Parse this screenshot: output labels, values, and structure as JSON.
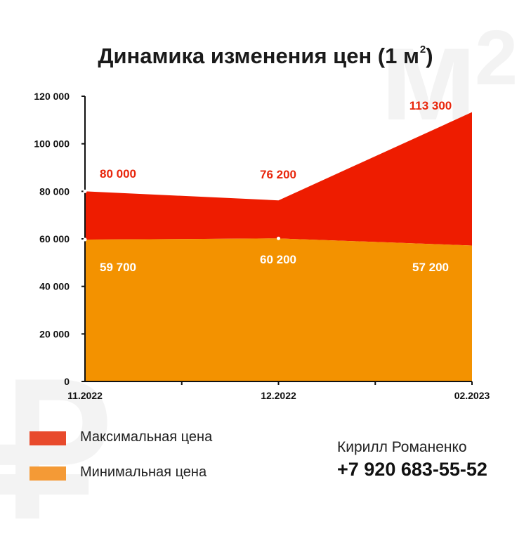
{
  "watermark": {
    "m": "м",
    "two": "2",
    "ruble": "₽"
  },
  "title": {
    "text": "Динамика изменения цен (1 м",
    "sup": "2",
    "close": ")"
  },
  "chart_data": {
    "type": "area",
    "title": "Динамика изменения цен (1 м²)",
    "categories": [
      "11.2022",
      "12.2022",
      "02.2023"
    ],
    "series": [
      {
        "name": "Максимальная цена",
        "values": [
          80000,
          76200,
          113300
        ],
        "color": "#ee1c00",
        "labels": [
          "80 000",
          "76 200",
          "113 300"
        ],
        "label_color": "#e8260c"
      },
      {
        "name": "Минимальная цена",
        "values": [
          59700,
          60200,
          57200
        ],
        "color": "#f39200",
        "labels": [
          "59 700",
          "60 200",
          "57 200"
        ],
        "label_color": "#ffffff"
      }
    ],
    "yticks": [
      0,
      20000,
      40000,
      60000,
      80000,
      100000,
      120000
    ],
    "ytick_labels": [
      "0",
      "20 000",
      "40 000",
      "60 000",
      "80 000",
      "100 000",
      "120 000"
    ],
    "ylim": [
      0,
      120000
    ],
    "grid": false
  },
  "legend": [
    {
      "label": "Максимальная цена",
      "color": "#e84a2c"
    },
    {
      "label": "Минимальная цена",
      "color": "#f49a36"
    }
  ],
  "contact": {
    "name": "Кирилл Романенко",
    "phone": "+7 920 683-55-52"
  }
}
